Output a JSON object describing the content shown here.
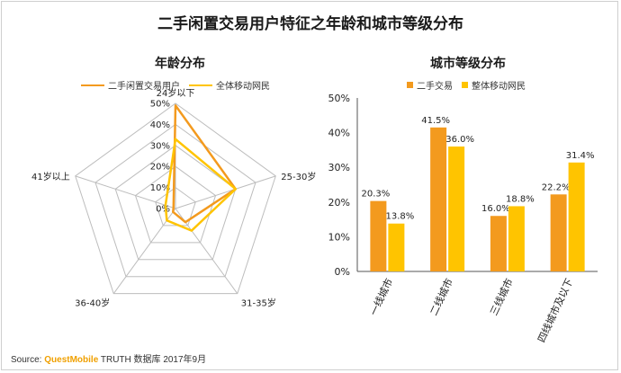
{
  "title": "二手闲置交易用户特征之年龄和城市等级分布",
  "source": {
    "prefix": "Source:",
    "brand": "QuestMobile",
    "suffix": "TRUTH 数据库 2017年9月"
  },
  "colors": {
    "orange": "#f39a1e",
    "yellow": "#ffc400",
    "grid": "#bdbdbd"
  },
  "chart_data": [
    {
      "type": "radar",
      "title": "年龄分布",
      "categories": [
        "24岁以下",
        "25-30岁",
        "31-35岁",
        "36-40岁",
        "41岁以上"
      ],
      "axis_ticks": [
        "0%",
        "10%",
        "20%",
        "30%",
        "40%",
        "50%"
      ],
      "rmax": 50,
      "legend_position": "top",
      "series": [
        {
          "name": "二手闲置交易用户",
          "values": [
            49,
            30,
            8,
            2,
            1
          ]
        },
        {
          "name": "全体移动网民",
          "values": [
            33,
            30,
            13,
            7,
            5
          ]
        }
      ]
    },
    {
      "type": "bar",
      "title": "城市等级分布",
      "categories": [
        "一线城市",
        "二线城市",
        "三线城市",
        "四线城市及以下"
      ],
      "ylim": [
        0,
        50
      ],
      "y_ticks": [
        "0%",
        "10%",
        "20%",
        "30%",
        "40%",
        "50%"
      ],
      "legend_position": "top",
      "series": [
        {
          "name": "二手交易",
          "values": [
            20.3,
            41.5,
            16.0,
            22.2
          ],
          "labels": [
            "20.3%",
            "41.5%",
            "16.0%",
            "22.2%"
          ]
        },
        {
          "name": "整体移动网民",
          "values": [
            13.8,
            36.0,
            18.8,
            31.4
          ],
          "labels": [
            "13.8%",
            "36.0%",
            "18.8%",
            "31.4%"
          ]
        }
      ]
    }
  ]
}
